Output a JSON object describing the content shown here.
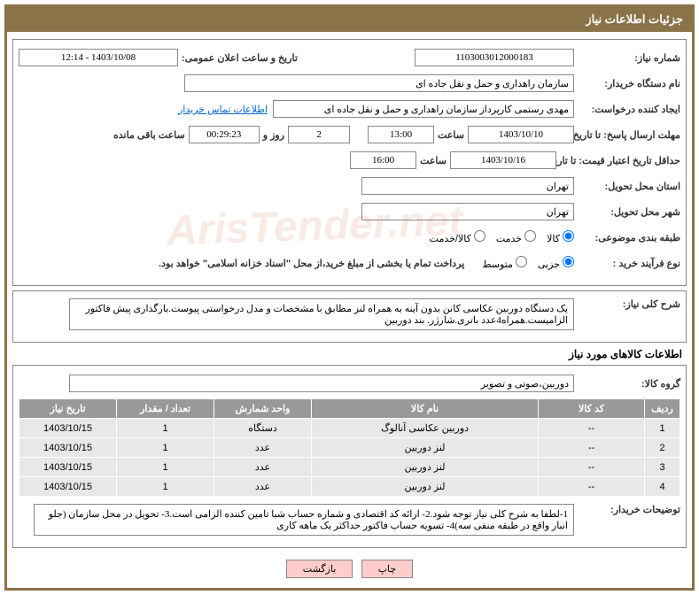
{
  "title": "جزئیات اطلاعات نیاز",
  "fields": {
    "need_number_label": "شماره نیاز:",
    "need_number": "1103003012000183",
    "announce_date_label": "تاریخ و ساعت اعلان عمومی:",
    "announce_date": "1403/10/08 - 12:14",
    "buyer_org_label": "نام دستگاه خریدار:",
    "buyer_org": "سازمان راهداری و حمل و نقل جاده ای",
    "requester_label": "ایجاد کننده درخواست:",
    "requester": "مهدی رستمی کارپرداز سازمان راهداری و حمل و نقل جاده ای",
    "buyer_contact_link": "اطلاعات تماس خریدار",
    "deadline_send_label": "مهلت ارسال پاسخ: تا تاریخ:",
    "deadline_send_date": "1403/10/10",
    "time_label": "ساعت",
    "deadline_send_time": "13:00",
    "days_remaining": "2",
    "days_label": "روز و",
    "time_remaining": "00:29:23",
    "remaining_label": "ساعت باقی مانده",
    "validity_label": "حداقل تاریخ اعتبار قیمت: تا تاریخ:",
    "validity_date": "1403/10/16",
    "validity_time": "16:00",
    "province_label": "استان محل تحویل:",
    "province": "تهران",
    "city_label": "شهر محل تحویل:",
    "city": "تهران",
    "category_label": "طبقه بندی موضوعی:",
    "cat_goods": "کالا",
    "cat_service": "خدمت",
    "cat_both": "کالا/خدمت",
    "purchase_type_label": "نوع فرآیند خرید :",
    "pt_small": "جزیی",
    "pt_medium": "متوسط",
    "payment_hint": "پرداخت تمام یا بخشی از مبلغ خرید،از محل \"اسناد خزانه اسلامی\" خواهد بود.",
    "desc_label": "شرح کلی نیاز:",
    "desc_text": "یک دستگاه دوربین عکاسی کانن بدون آینه به همراه لنز مطابق با مشخصات و مدل درخواستی پیوست.بارگذاری پیش فاکتور الزامیست.همراه4عدد باتری.شارژر. بند دوربین",
    "items_title": "اطلاعات کالاهای مورد نیاز",
    "group_label": "گروه کالا:",
    "group_value": "دوربین،صوتی و تصویر",
    "notes_label": "توضیحات خریدار:",
    "notes_text": "1-لطفا به شرح کلی نیاز توجه شود.2- ارائه کد اقتصادی و شماره حساب شبا تامین کننده الزامی است.3- تحویل در محل سازمان (جلو انبار واقع در طبقه منفی سه)4- تسویه حساب فاکتور حداکثر یک ماهه کاری"
  },
  "table": {
    "headers": {
      "row": "ردیف",
      "code": "کد کالا",
      "name": "نام کالا",
      "unit": "واحد شمارش",
      "qty": "تعداد / مقدار",
      "date": "تاریخ نیاز"
    },
    "rows": [
      {
        "n": "1",
        "code": "--",
        "name": "دوربین عکاسی آنالوگ",
        "unit": "دستگاه",
        "qty": "1",
        "date": "1403/10/15"
      },
      {
        "n": "2",
        "code": "--",
        "name": "لنز دوربین",
        "unit": "عدد",
        "qty": "1",
        "date": "1403/10/15"
      },
      {
        "n": "3",
        "code": "--",
        "name": "لنز دوربین",
        "unit": "عدد",
        "qty": "1",
        "date": "1403/10/15"
      },
      {
        "n": "4",
        "code": "--",
        "name": "لنز دوربین",
        "unit": "عدد",
        "qty": "1",
        "date": "1403/10/15"
      }
    ]
  },
  "buttons": {
    "print": "چاپ",
    "back": "بازگشت"
  },
  "watermark": "ArisTender.net"
}
